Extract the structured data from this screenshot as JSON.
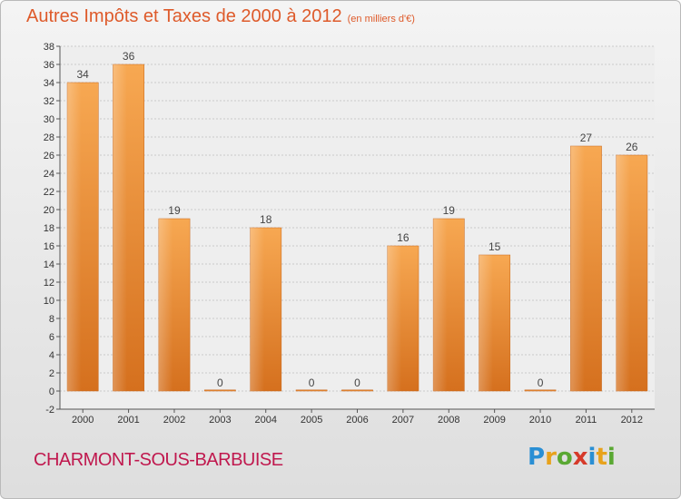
{
  "header": {
    "title": "Autres Impôts et Taxes de 2000 à 2012",
    "subtitle": "(en milliers d'€)"
  },
  "commune": "CHARMONT-SOUS-BARBUISE",
  "logo": {
    "letters": [
      "P",
      "r",
      "o",
      "x",
      "i",
      "t",
      "i"
    ],
    "colors": [
      "#2a8fd4",
      "#e8a21c",
      "#5aa833",
      "#d63a2a",
      "#2a8fd4",
      "#e8a21c",
      "#5aa833"
    ]
  },
  "chart_data": {
    "type": "bar",
    "categories": [
      "2000",
      "2001",
      "2002",
      "2003",
      "2004",
      "2005",
      "2006",
      "2007",
      "2008",
      "2009",
      "2010",
      "2011",
      "2012"
    ],
    "values": [
      34,
      36,
      19,
      0,
      18,
      0,
      0,
      16,
      19,
      15,
      0,
      27,
      26
    ],
    "ylim": [
      -2,
      38
    ],
    "yticks": [
      -2,
      0,
      2,
      4,
      6,
      8,
      10,
      12,
      14,
      16,
      18,
      20,
      22,
      24,
      26,
      28,
      30,
      32,
      34,
      36,
      38
    ],
    "grid": true,
    "bar_color": "#f2913a",
    "bar_color_dark": "#d96f1a"
  }
}
